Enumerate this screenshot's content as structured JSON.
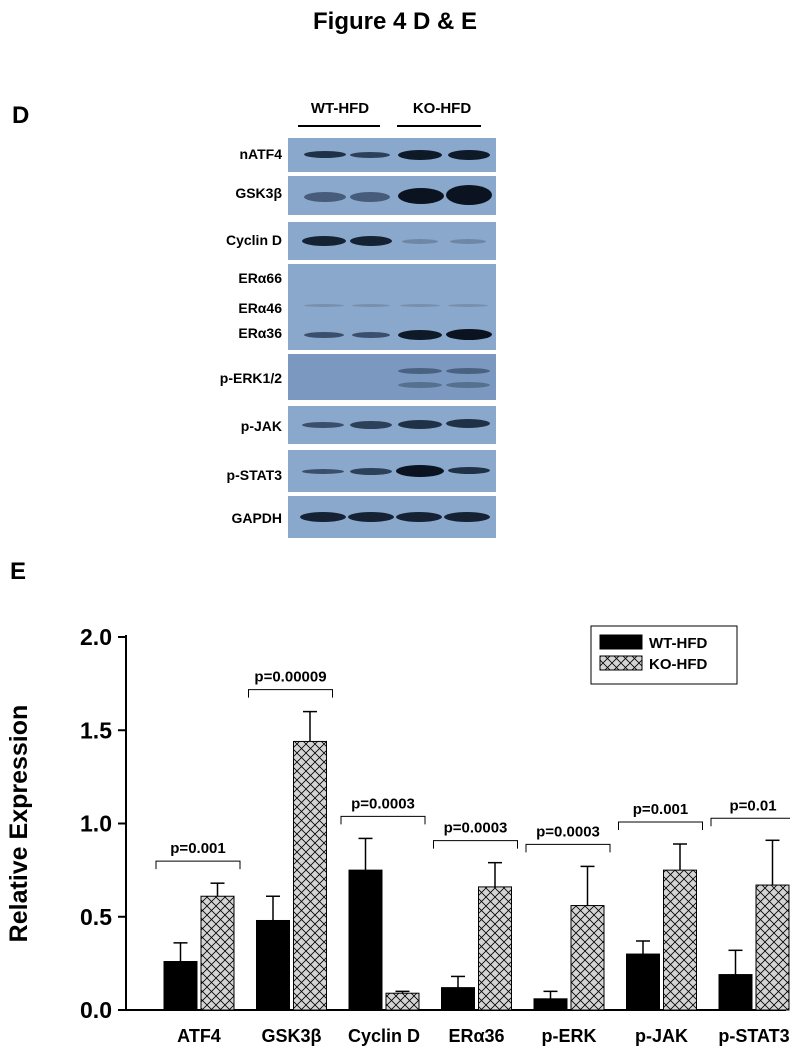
{
  "figure_title": "Figure 4 D & E",
  "panel_d_label": "D",
  "panel_e_label": "E",
  "blot": {
    "groups": [
      "WT-HFD",
      "KO-HFD"
    ],
    "rows": [
      "nATF4",
      "GSK3β",
      "Cyclin D",
      "ERα66",
      "ERα46",
      "ERα36",
      "p-ERK1/2",
      "p-JAK",
      "p-STAT3",
      "GAPDH"
    ]
  },
  "chart_data": {
    "type": "bar",
    "title": "",
    "xlabel": "",
    "ylabel": "Relative Expression",
    "ylim": [
      0,
      2.0
    ],
    "yticks": [
      "0.0",
      "0.5",
      "1.0",
      "1.5",
      "2.0"
    ],
    "categories": [
      "ATF4",
      "GSK3β",
      "Cyclin D",
      "ERα36",
      "p-ERK",
      "p-JAK",
      "p-STAT3"
    ],
    "series": [
      {
        "name": "WT-HFD",
        "values": [
          0.26,
          0.48,
          0.75,
          0.12,
          0.06,
          0.3,
          0.19
        ],
        "errors": [
          0.1,
          0.13,
          0.17,
          0.06,
          0.04,
          0.07,
          0.13
        ],
        "color": "#000000"
      },
      {
        "name": "KO-HFD",
        "values": [
          0.61,
          1.44,
          0.09,
          0.66,
          0.56,
          0.75,
          0.67
        ],
        "errors": [
          0.07,
          0.16,
          0.01,
          0.13,
          0.21,
          0.14,
          0.24
        ],
        "color": "#d4d4d4"
      }
    ],
    "annotations": [
      "p=0.001",
      "p=0.00009",
      "p=0.0003",
      "p=0.0003",
      "p=0.0003",
      "p=0.001",
      "p=0.01"
    ],
    "legend_position": "top-right",
    "grid": false
  }
}
